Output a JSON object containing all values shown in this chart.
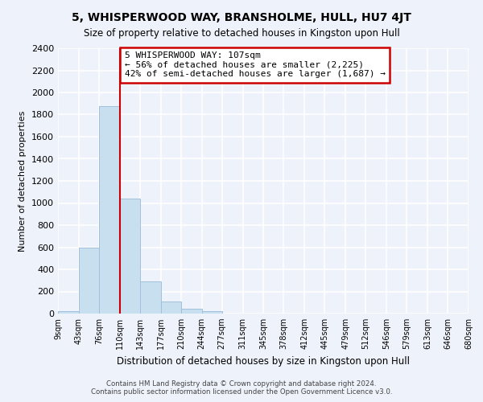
{
  "title": "5, WHISPERWOOD WAY, BRANSHOLME, HULL, HU7 4JT",
  "subtitle": "Size of property relative to detached houses in Kingston upon Hull",
  "xlabel": "Distribution of detached houses by size in Kingston upon Hull",
  "ylabel": "Number of detached properties",
  "bar_color": "#c8dff0",
  "bar_edge_color": "#a0c0dc",
  "bin_edges": [
    9,
    43,
    76,
    110,
    143,
    177,
    210,
    244,
    277,
    311,
    345,
    378,
    412,
    445,
    479,
    512,
    546,
    579,
    613,
    646,
    680
  ],
  "bin_labels": [
    "9sqm",
    "43sqm",
    "76sqm",
    "110sqm",
    "143sqm",
    "177sqm",
    "210sqm",
    "244sqm",
    "277sqm",
    "311sqm",
    "345sqm",
    "378sqm",
    "412sqm",
    "445sqm",
    "479sqm",
    "512sqm",
    "546sqm",
    "579sqm",
    "613sqm",
    "646sqm",
    "680sqm"
  ],
  "counts": [
    25,
    600,
    1880,
    1040,
    290,
    110,
    45,
    20,
    0,
    0,
    0,
    0,
    0,
    0,
    0,
    0,
    0,
    0,
    0,
    0
  ],
  "vline_x": 110,
  "vline_color": "#cc0000",
  "annotation_line1": "5 WHISPERWOOD WAY: 107sqm",
  "annotation_line2": "← 56% of detached houses are smaller (2,225)",
  "annotation_line3": "42% of semi-detached houses are larger (1,687) →",
  "annotation_box_color": "#ffffff",
  "annotation_box_edge": "#cc0000",
  "ylim": [
    0,
    2400
  ],
  "yticks": [
    0,
    200,
    400,
    600,
    800,
    1000,
    1200,
    1400,
    1600,
    1800,
    2000,
    2200,
    2400
  ],
  "footer1": "Contains HM Land Registry data © Crown copyright and database right 2024.",
  "footer2": "Contains public sector information licensed under the Open Government Licence v3.0.",
  "background_color": "#eef2fa",
  "grid_color": "#ffffff"
}
